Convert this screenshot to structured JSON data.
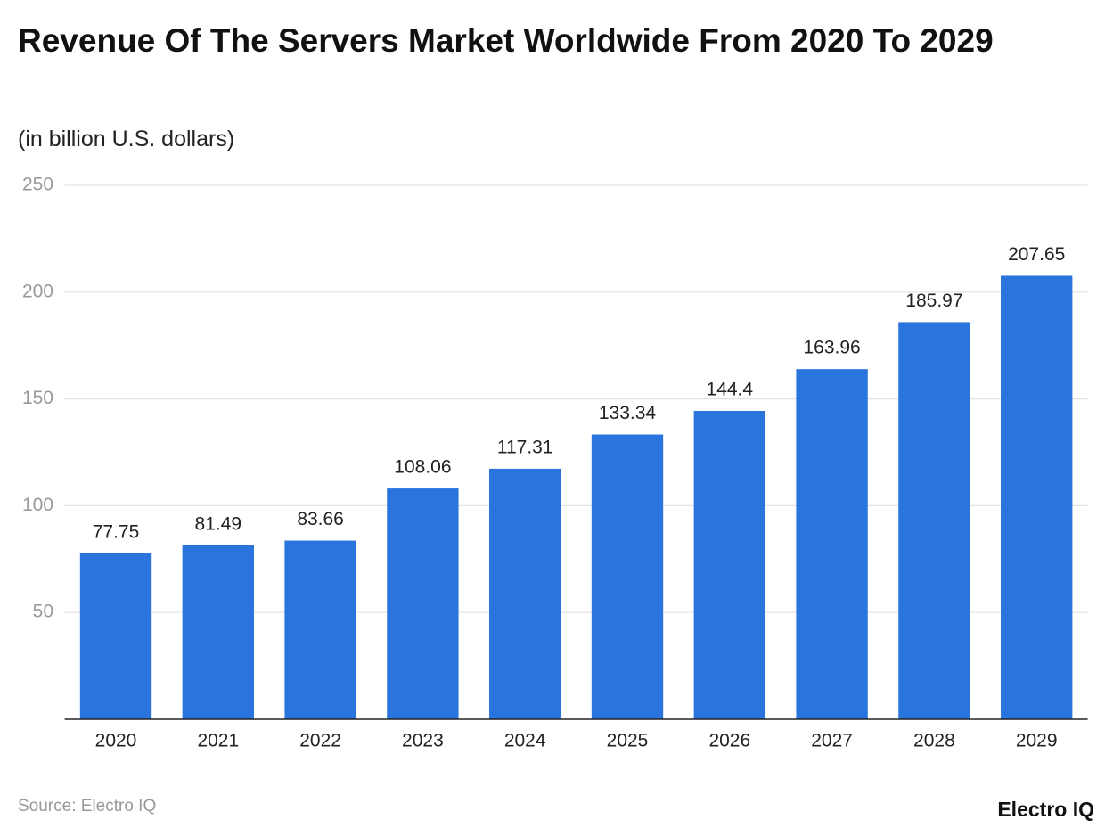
{
  "chart_data": {
    "type": "bar",
    "title": "Revenue Of The Servers Market Worldwide From 2020 To 2029",
    "subtitle": "(in billion U.S. dollars)",
    "categories": [
      "2020",
      "2021",
      "2022",
      "2023",
      "2024",
      "2025",
      "2026",
      "2027",
      "2028",
      "2029"
    ],
    "values": [
      77.75,
      81.49,
      83.66,
      108.06,
      117.31,
      133.34,
      144.4,
      163.96,
      185.97,
      207.65
    ],
    "color": "#2a75dd",
    "ylim": [
      0,
      250
    ],
    "yticks": [
      50,
      100,
      150,
      200,
      250
    ],
    "grid": true,
    "source": "Source: Electro IQ",
    "brand": "Electro IQ"
  }
}
